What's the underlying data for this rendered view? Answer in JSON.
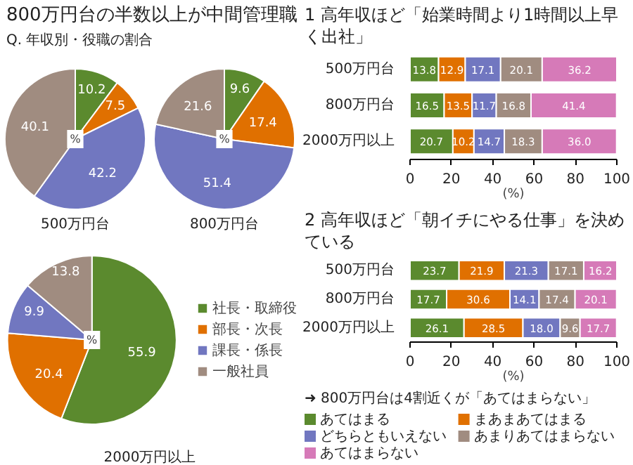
{
  "chart_data": [
    {
      "type": "pie",
      "title": "800万円台の半数以上が中間管理職",
      "subtitle": "Q. 年収別・役職の割合",
      "xlabel": "500万円台",
      "categories": [
        null,
        null,
        null,
        null
      ],
      "values": [
        10.2,
        7.5,
        42.2,
        40.1
      ],
      "colors": [
        "#5b8a2e",
        "#e07000",
        "#7177c0",
        "#a08c80"
      ],
      "data_labels": true,
      "annotations": [
        "%"
      ]
    },
    {
      "type": "pie",
      "xlabel": "800万円台",
      "categories": [
        null,
        null,
        null,
        null
      ],
      "values": [
        9.6,
        17.4,
        51.4,
        21.6
      ],
      "colors": [
        "#5b8a2e",
        "#e07000",
        "#7177c0",
        "#a08c80"
      ],
      "data_labels": true,
      "annotations": [
        "%"
      ]
    },
    {
      "type": "pie",
      "xlabel": "2000万円以上",
      "categories": [
        "社長・取締役",
        "部長・次長",
        "課長・係長",
        "一般社員"
      ],
      "values": [
        55.9,
        20.4,
        9.9,
        13.8
      ],
      "colors": [
        "#5b8a2e",
        "#e07000",
        "#7177c0",
        "#a08c80"
      ],
      "data_labels": true,
      "annotations": [
        "%"
      ],
      "legend": "right"
    },
    {
      "type": "bar",
      "orientation": "horizontal",
      "stacked": true,
      "title": "1 高年収ほど「始業時間より1時間以上早く出社」",
      "xlabel": "(%)",
      "categories": [
        "500万円台",
        "800万円台",
        "2000万円以上"
      ],
      "xlim": [
        0,
        100
      ],
      "xticks": [
        0,
        20,
        40,
        60,
        80,
        100
      ],
      "data_labels": true,
      "series": [
        {
          "color": "#5b8a2e",
          "values": [
            13.8,
            16.5,
            20.7
          ]
        },
        {
          "color": "#e07000",
          "values": [
            12.9,
            13.5,
            10.2
          ]
        },
        {
          "color": "#7177c0",
          "values": [
            17.1,
            11.7,
            14.7
          ]
        },
        {
          "color": "#a08c80",
          "values": [
            20.1,
            16.8,
            18.3
          ]
        },
        {
          "color": "#d67ab8",
          "values": [
            36.2,
            41.4,
            36.0
          ],
          "value_labels": [
            "36.2",
            "41.4",
            "36.0"
          ]
        }
      ]
    },
    {
      "type": "bar",
      "orientation": "horizontal",
      "stacked": true,
      "title": "2 高年収ほど「朝イチにやる仕事」を決めている",
      "xlabel": "(%)",
      "categories": [
        "500万円台",
        "800万円台",
        "2000万円以上"
      ],
      "xlim": [
        0,
        100
      ],
      "xticks": [
        0,
        20,
        40,
        60,
        80,
        100
      ],
      "data_labels": true,
      "legend": "bottom",
      "annotations": [
        "➜ 800万円台は4割近くが「あてはまらない」"
      ],
      "series": [
        {
          "name": "あてはまる",
          "color": "#5b8a2e",
          "values": [
            23.7,
            17.7,
            26.1
          ]
        },
        {
          "name": "まあまあてはまる",
          "color": "#e07000",
          "values": [
            21.9,
            30.6,
            28.5
          ]
        },
        {
          "name": "どちらともいえない",
          "color": "#7177c0",
          "values": [
            21.3,
            14.1,
            18.0
          ],
          "value_labels": [
            "21.3",
            "14.1",
            "18.0"
          ]
        },
        {
          "name": "あまりあてはまらない",
          "color": "#a08c80",
          "values": [
            17.1,
            17.4,
            9.6
          ]
        },
        {
          "name": "あてはまらない",
          "color": "#d67ab8",
          "values": [
            16.2,
            20.1,
            17.7
          ]
        }
      ]
    }
  ]
}
